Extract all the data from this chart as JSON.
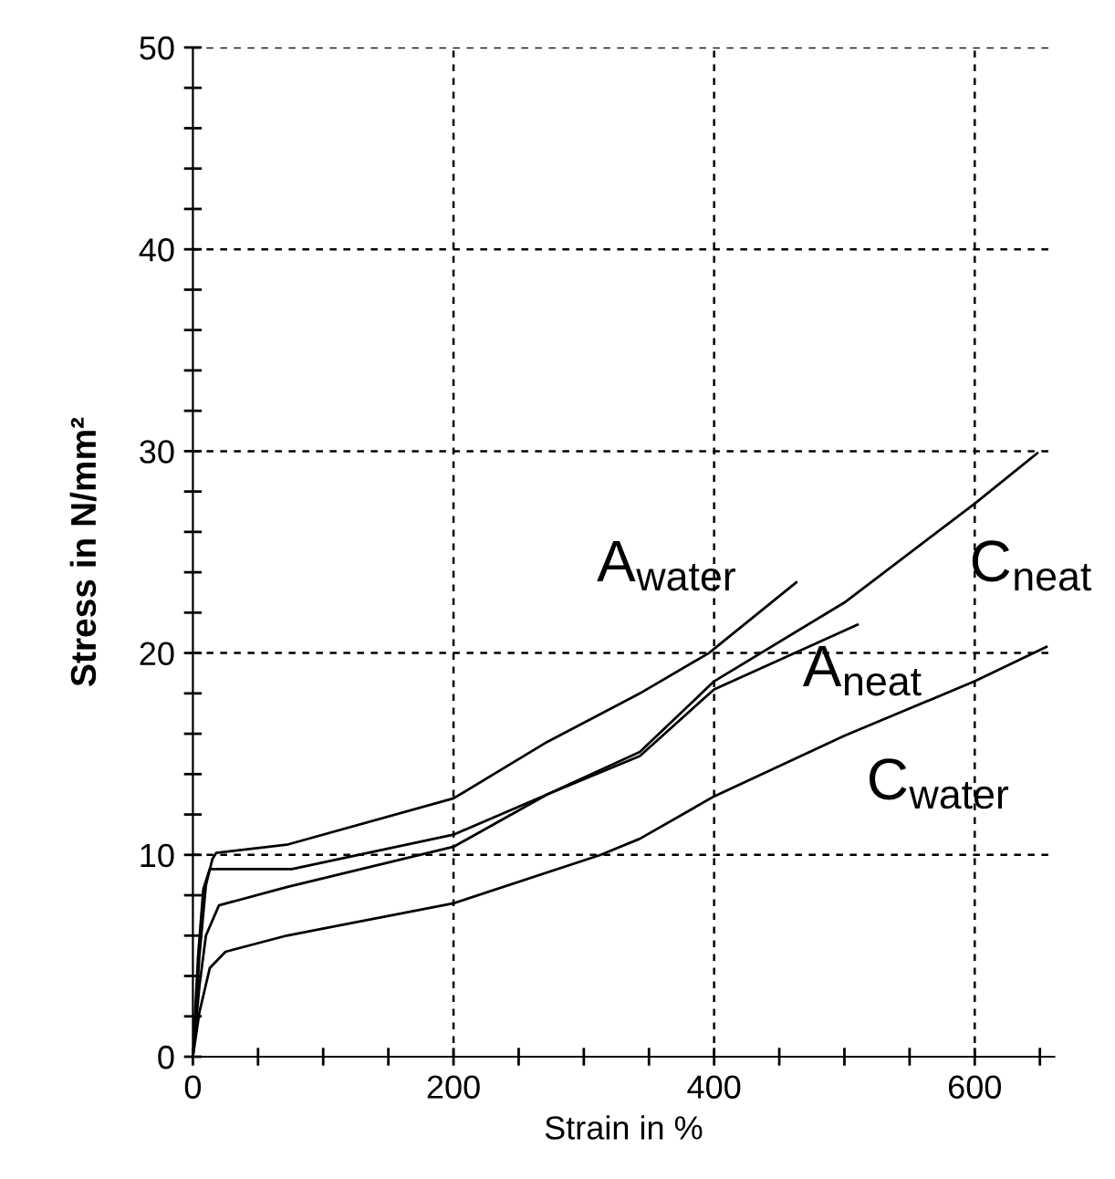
{
  "chart_data": {
    "type": "line",
    "xlabel": "Strain in %",
    "ylabel": "Stress in N/mm²",
    "xlim": [
      0,
      661
    ],
    "ylim": [
      0,
      50
    ],
    "xticks": [
      0,
      {
        "value": 50,
        "label": null
      },
      {
        "value": 100,
        "label": null
      },
      {
        "value": 150,
        "label": null
      },
      200,
      {
        "value": 250,
        "label": null
      },
      {
        "value": 300,
        "label": null
      },
      {
        "value": 350,
        "label": null
      },
      400,
      {
        "value": 450,
        "label": null
      },
      {
        "value": 500,
        "label": null
      },
      {
        "value": 550,
        "label": null
      },
      600,
      {
        "value": 650,
        "label": null
      }
    ],
    "yticks": [
      0,
      {
        "value": 2,
        "label": null
      },
      {
        "value": 4,
        "label": null
      },
      {
        "value": 6,
        "label": null
      },
      {
        "value": 8,
        "label": null
      },
      10,
      {
        "value": 12,
        "label": null
      },
      {
        "value": 14,
        "label": null
      },
      {
        "value": 16,
        "label": null
      },
      {
        "value": 18,
        "label": null
      },
      20,
      {
        "value": 22,
        "label": null
      },
      {
        "value": 24,
        "label": null
      },
      {
        "value": 26,
        "label": null
      },
      {
        "value": 28,
        "label": null
      },
      30,
      {
        "value": 32,
        "label": null
      },
      {
        "value": 34,
        "label": null
      },
      {
        "value": 36,
        "label": null
      },
      {
        "value": 38,
        "label": null
      },
      40,
      {
        "value": 42,
        "label": null
      },
      {
        "value": 44,
        "label": null
      },
      {
        "value": 46,
        "label": null
      },
      {
        "value": 48,
        "label": null
      },
      50
    ],
    "grid": true,
    "marker": "none",
    "line_style": "solid",
    "series": [
      {
        "name": "A$_{water}$",
        "color": "#000000",
        "x": [
          0,
          5,
          10,
          15,
          18,
          72,
          200,
          272,
          343,
          396,
          463
        ],
        "values": [
          0,
          5,
          8.5,
          9.8,
          10.1,
          10.5,
          12.8,
          15.6,
          18.0,
          20.0,
          23.5
        ]
      },
      {
        "name": "C$_{neat}$",
        "color": "#000000",
        "x": [
          0,
          4,
          8,
          13,
          76,
          200,
          272,
          343,
          400,
          500,
          600,
          648
        ],
        "values": [
          0,
          5,
          8.3,
          9.3,
          9.3,
          11.0,
          13.0,
          15.1,
          18.6,
          22.5,
          27.4,
          29.9
        ]
      },
      {
        "name": "A$_{neat}$",
        "color": "#000000",
        "x": [
          0,
          5,
          10,
          20,
          72,
          200,
          272,
          343,
          400,
          510
        ],
        "values": [
          0,
          3.5,
          6.0,
          7.5,
          8.4,
          10.4,
          13.0,
          14.9,
          18.2,
          21.4
        ]
      },
      {
        "name": "C$_{water}$",
        "color": "#000000",
        "x": [
          0,
          5,
          13,
          25,
          72,
          200,
          313,
          343,
          400,
          500,
          600,
          655
        ],
        "values": [
          0,
          2.2,
          4.4,
          5.2,
          6.0,
          7.6,
          10.0,
          10.8,
          12.9,
          15.9,
          18.6,
          20.3
        ]
      }
    ]
  }
}
